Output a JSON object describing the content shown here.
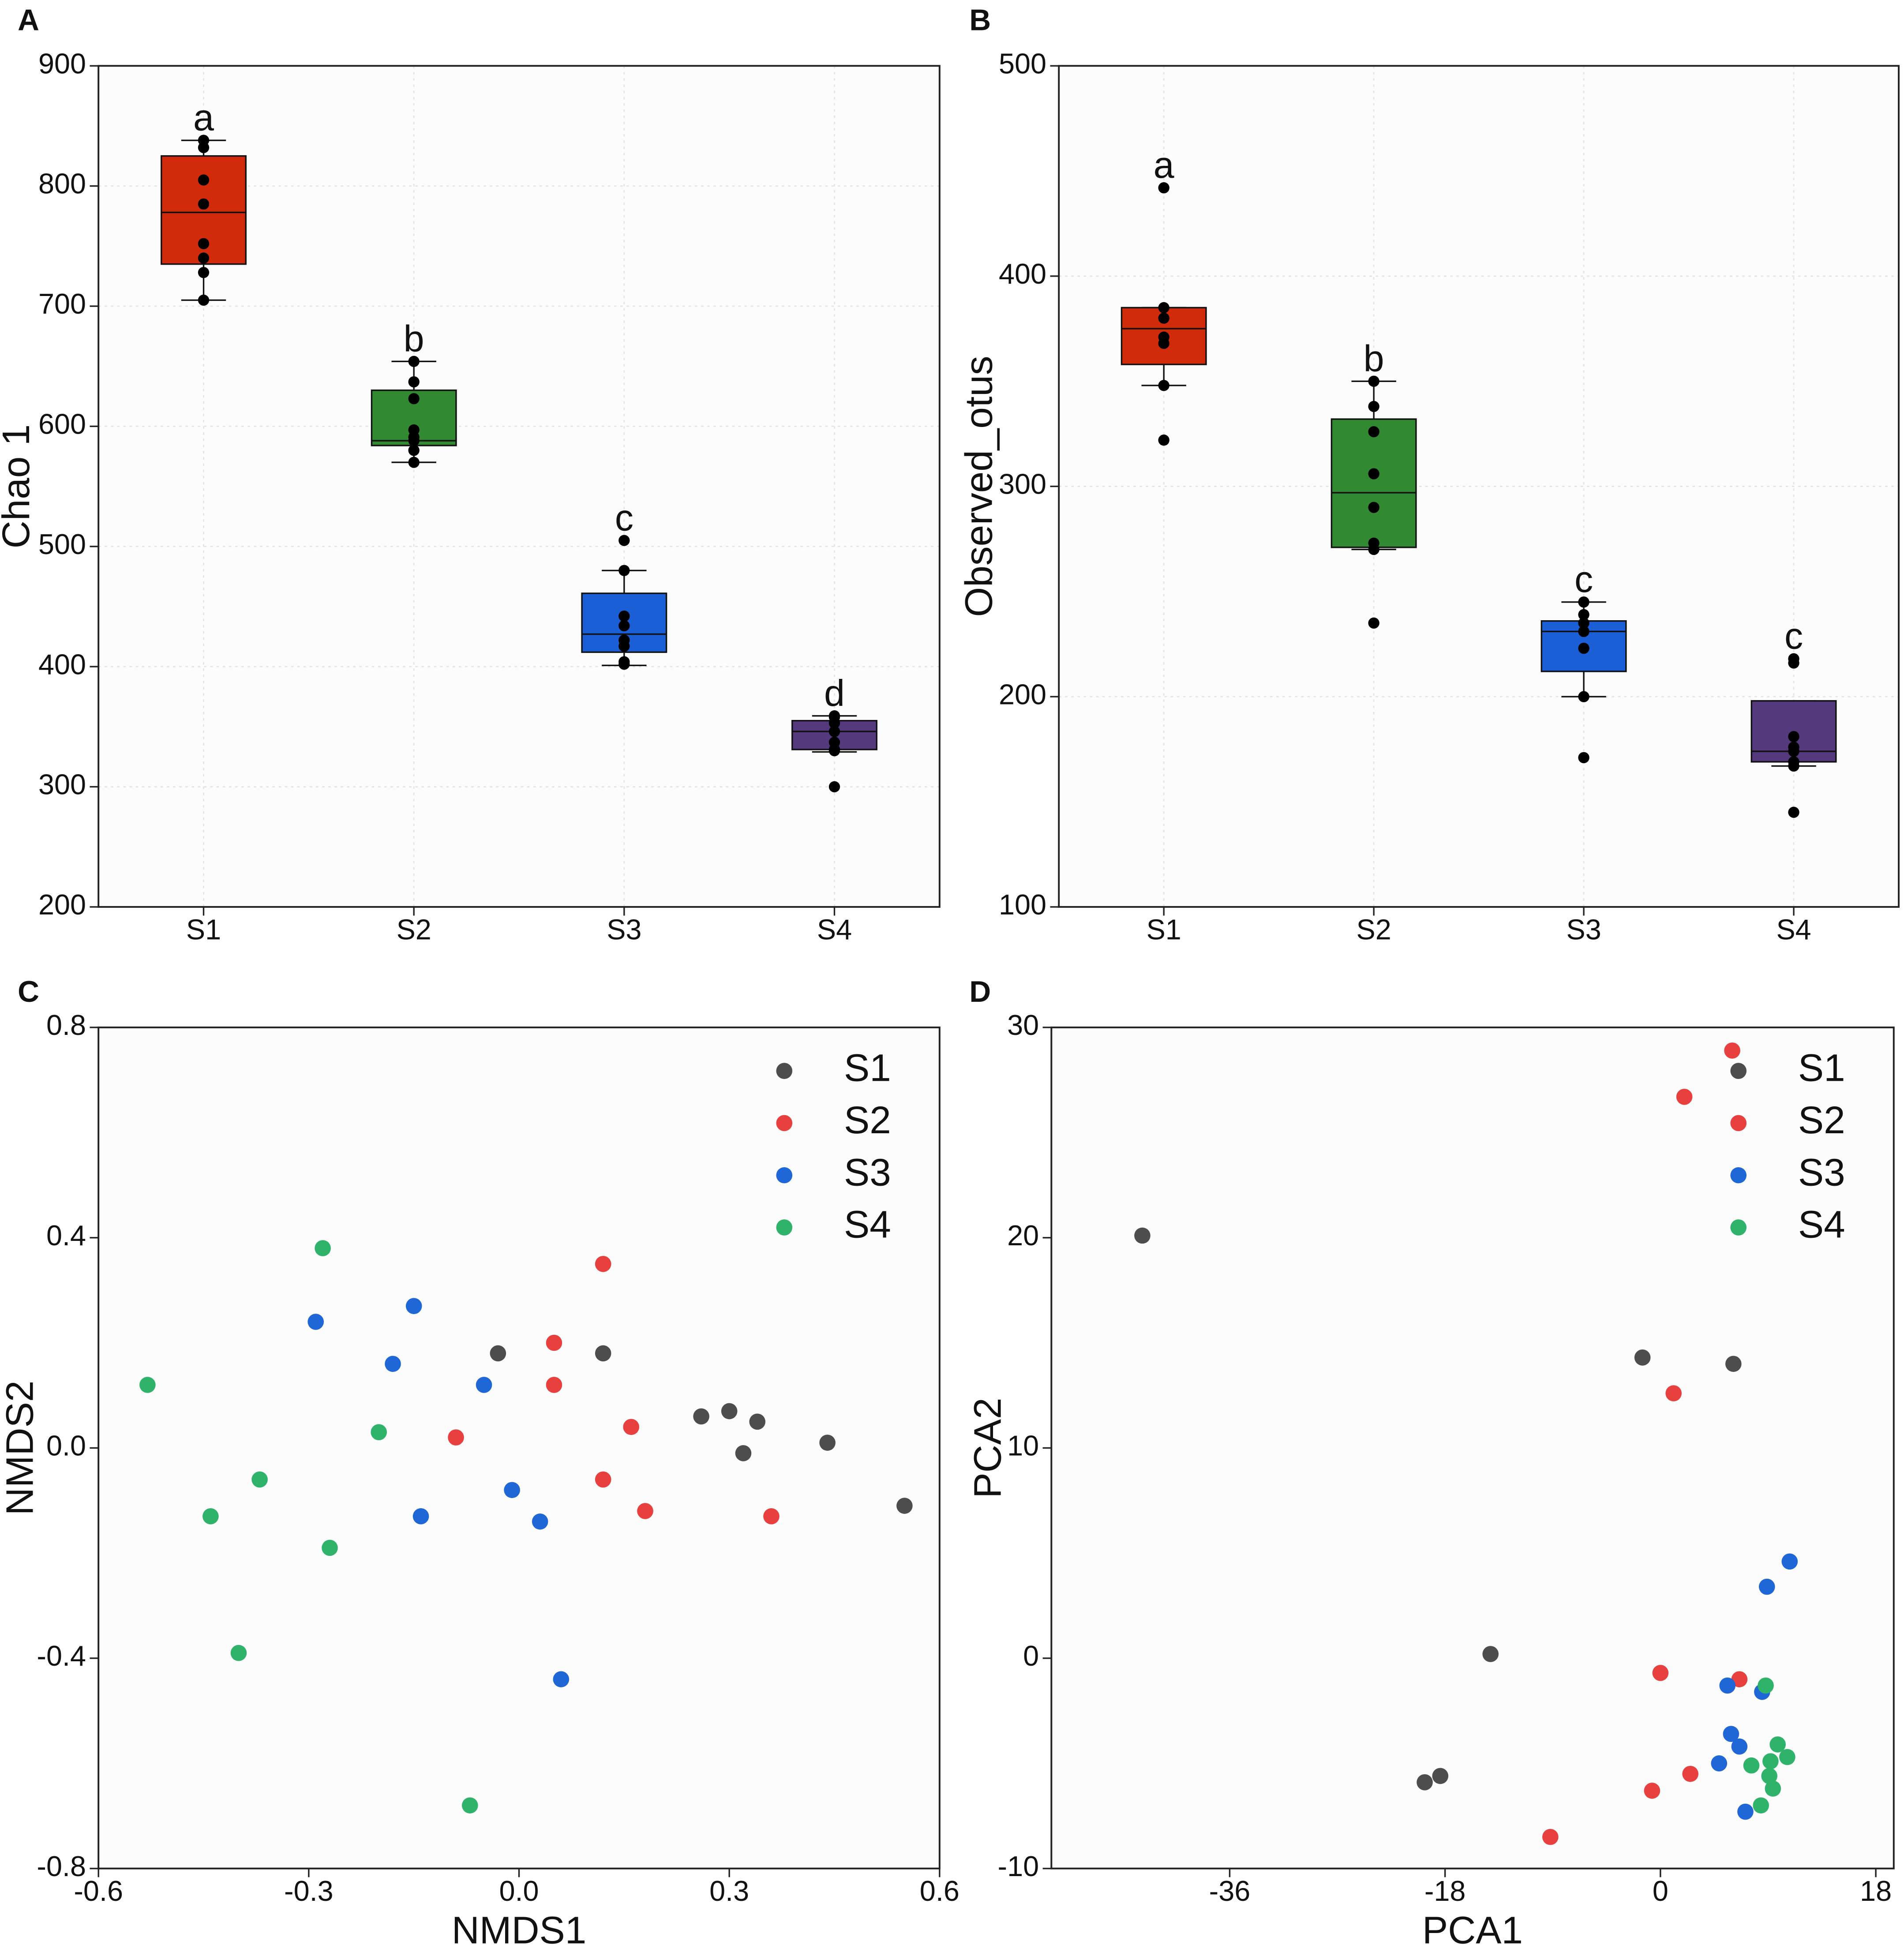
{
  "chart_data": [
    {
      "type": "box",
      "panel_label": "A",
      "ylabel": "Chao 1",
      "categories": [
        "S1",
        "S2",
        "S3",
        "S4"
      ],
      "colors": [
        "#d22b0c",
        "#318a32",
        "#1a5fd6",
        "#55397d"
      ],
      "boxes": [
        {
          "min": 705,
          "q1": 735,
          "median": 778,
          "q3": 825,
          "max": 838
        },
        {
          "min": 570,
          "q1": 584,
          "median": 588,
          "q3": 630,
          "max": 654
        },
        {
          "min": 401,
          "q1": 412,
          "median": 427,
          "q3": 461,
          "max": 480
        },
        {
          "min": 329,
          "q1": 331,
          "median": 346,
          "q3": 355,
          "max": 359
        }
      ],
      "points": [
        [
          838,
          832,
          805,
          785,
          752,
          740,
          728,
          705
        ],
        [
          654,
          637,
          623,
          597,
          591,
          588,
          580,
          570
        ],
        [
          505,
          480,
          442,
          434,
          422,
          417,
          404,
          402
        ],
        [
          359,
          358,
          353,
          346,
          337,
          331,
          330,
          300
        ]
      ],
      "annotations": [
        "a",
        "b",
        "c",
        "d"
      ],
      "ylim": [
        200,
        900
      ],
      "yticks": [
        200,
        300,
        400,
        500,
        600,
        700,
        800,
        900
      ],
      "grid": true
    },
    {
      "type": "box",
      "panel_label": "B",
      "ylabel": "Observed_otus",
      "categories": [
        "S1",
        "S2",
        "S3",
        "S4"
      ],
      "colors": [
        "#d22b0c",
        "#318a32",
        "#1a5fd6",
        "#55397d"
      ],
      "boxes": [
        {
          "min": 348,
          "q1": 358,
          "median": 375,
          "q3": 385,
          "max": 385
        },
        {
          "min": 270,
          "q1": 271,
          "median": 297,
          "q3": 332,
          "max": 350
        },
        {
          "min": 200,
          "q1": 212,
          "median": 231,
          "q3": 236,
          "max": 245
        },
        {
          "min": 167,
          "q1": 169,
          "median": 174,
          "q3": 198,
          "max": 198
        }
      ],
      "points": [
        [
          442,
          385,
          380,
          371,
          368,
          348,
          322
        ],
        [
          350,
          338,
          326,
          306,
          290,
          273,
          270,
          235
        ],
        [
          245,
          239,
          235,
          231,
          223,
          200,
          171
        ],
        [
          218,
          216,
          181,
          176,
          174,
          169,
          167,
          145
        ]
      ],
      "annotations": [
        "a",
        "b",
        "c",
        "c"
      ],
      "ylim": [
        100,
        500
      ],
      "yticks": [
        100,
        200,
        300,
        400,
        500
      ],
      "grid": true
    },
    {
      "type": "scatter",
      "panel_label": "C",
      "xlabel": "NMDS1",
      "ylabel": "NMDS2",
      "legend": "upper right",
      "series": [
        {
          "name": "S1",
          "color": "#4d4d4d",
          "x": [
            -0.03,
            0.12,
            0.26,
            0.3,
            0.34,
            0.32,
            0.44,
            0.55
          ],
          "values": [
            0.18,
            0.18,
            0.06,
            0.07,
            0.05,
            -0.01,
            0.01,
            -0.11
          ]
        },
        {
          "name": "S2",
          "color": "#e8403f",
          "x": [
            0.12,
            0.05,
            0.05,
            -0.09,
            0.16,
            0.12,
            0.18,
            0.36
          ],
          "values": [
            0.35,
            0.2,
            0.12,
            0.02,
            0.04,
            -0.06,
            -0.12,
            -0.13
          ]
        },
        {
          "name": "S3",
          "color": "#1f66d6",
          "x": [
            -0.29,
            -0.15,
            -0.18,
            -0.05,
            -0.01,
            -0.14,
            0.03,
            0.06
          ],
          "values": [
            0.24,
            0.27,
            0.16,
            0.12,
            -0.08,
            -0.13,
            -0.14,
            -0.44
          ]
        },
        {
          "name": "S4",
          "color": "#2fb36b",
          "x": [
            -0.28,
            -0.53,
            -0.2,
            -0.37,
            -0.44,
            -0.27,
            -0.4,
            -0.07
          ],
          "values": [
            0.38,
            0.12,
            0.03,
            -0.06,
            -0.13,
            -0.19,
            -0.39,
            -0.68
          ]
        }
      ],
      "xlim": [
        -0.6,
        0.6
      ],
      "xticks": [
        -0.6,
        -0.3,
        {
          "value": 0,
          "label": "0.0"
        },
        0.3,
        0.6
      ],
      "ylim": [
        -0.8,
        0.8
      ],
      "yticks": [
        -0.8,
        -0.4,
        {
          "value": 0,
          "label": "0.0"
        },
        0.4,
        0.8
      ]
    },
    {
      "type": "scatter",
      "panel_label": "D",
      "xlabel": "PCA1",
      "ylabel": "PCA2",
      "legend": "upper right",
      "series": [
        {
          "name": "S1",
          "color": "#4d4d4d",
          "x": [
            -43.3,
            -1.5,
            6.1,
            -14.2,
            -19.7,
            -18.4
          ],
          "values": [
            20.1,
            14.3,
            14.0,
            0.2,
            -5.9,
            -5.6
          ]
        },
        {
          "name": "S2",
          "color": "#e8403f",
          "x": [
            6.0,
            2.0,
            1.1,
            0,
            6.6,
            -0.7,
            2.5,
            -9.2
          ],
          "values": [
            28.9,
            26.7,
            12.6,
            -0.7,
            -1.0,
            -6.3,
            -5.5,
            -8.5
          ]
        },
        {
          "name": "S3",
          "color": "#1f66d6",
          "x": [
            10.8,
            8.9,
            5.6,
            8.5,
            5.9,
            6.6,
            4.9,
            7.1
          ],
          "values": [
            4.6,
            3.4,
            -1.3,
            -1.6,
            -3.6,
            -4.2,
            -5.0,
            -7.3
          ]
        },
        {
          "name": "S4",
          "color": "#2fb36b",
          "x": [
            8.8,
            9.8,
            10.6,
            7.6,
            9.1,
            9.2,
            9.4,
            8.4
          ],
          "values": [
            -1.3,
            -4.1,
            -4.7,
            -5.1,
            -5.6,
            -4.9,
            -6.2,
            -7.0
          ]
        }
      ],
      "xlim": [
        -50.9,
        19.5
      ],
      "xticks": [
        -36,
        -18,
        0,
        18
      ],
      "ylim": [
        -10,
        30
      ],
      "yticks": [
        -10,
        0,
        10,
        20,
        30
      ]
    }
  ]
}
